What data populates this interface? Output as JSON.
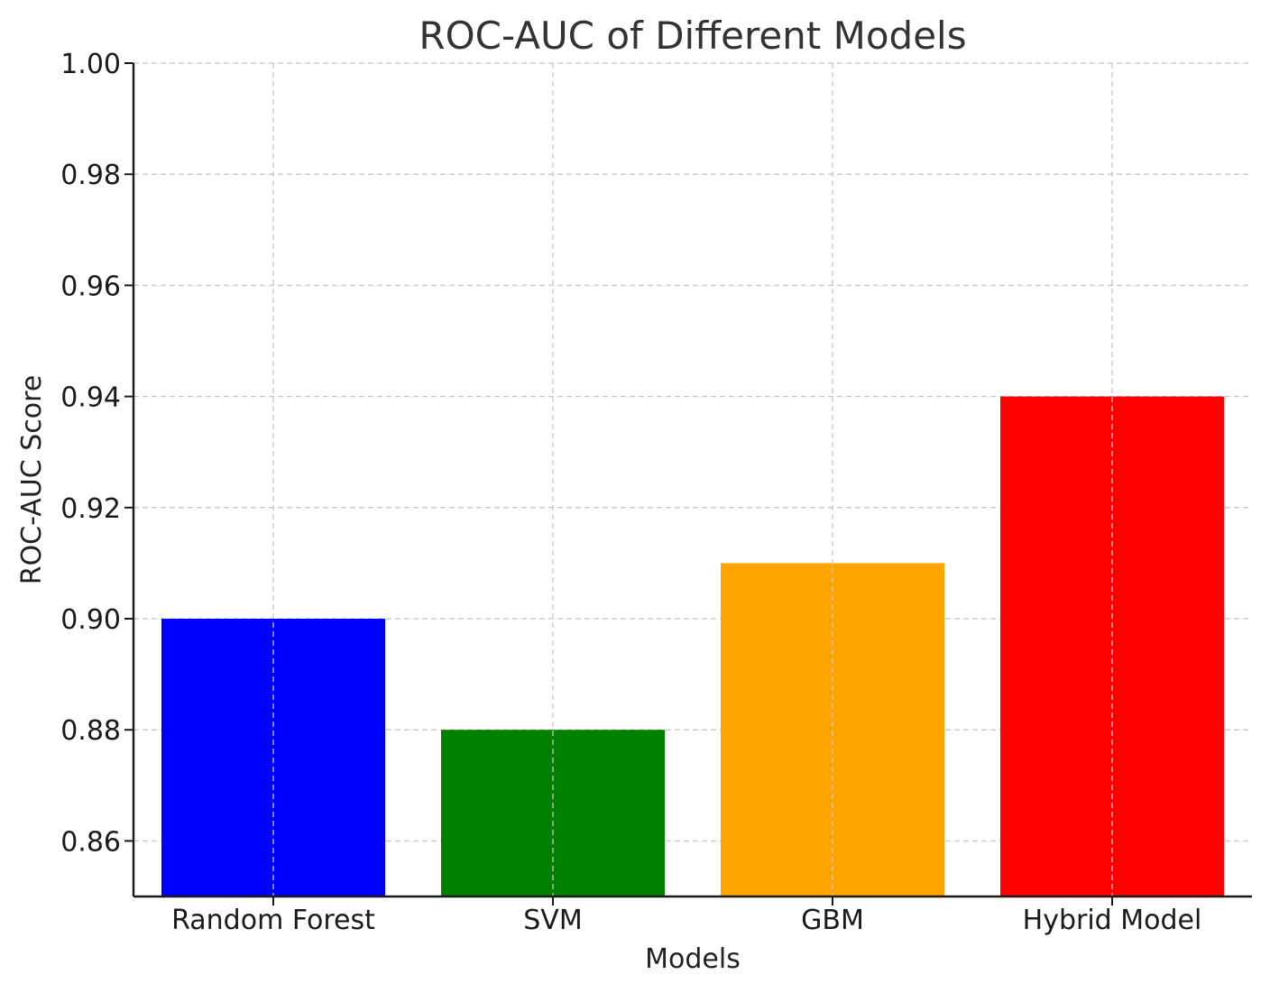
{
  "chart_data": {
    "type": "bar",
    "title": "ROC-AUC of Different Models",
    "xlabel": "Models",
    "ylabel": "ROC-AUC Score",
    "categories": [
      "Random Forest",
      "SVM",
      "GBM",
      "Hybrid Model"
    ],
    "values": [
      0.9,
      0.88,
      0.91,
      0.94
    ],
    "colors": [
      "#0000ff",
      "#008000",
      "#ffa500",
      "#ff0000"
    ],
    "ylim": [
      0.85,
      1.0
    ],
    "yticks": [
      "0.86",
      "0.88",
      "0.90",
      "0.92",
      "0.94",
      "0.96",
      "0.98",
      "1.00"
    ],
    "grid": true,
    "legend": "none"
  }
}
